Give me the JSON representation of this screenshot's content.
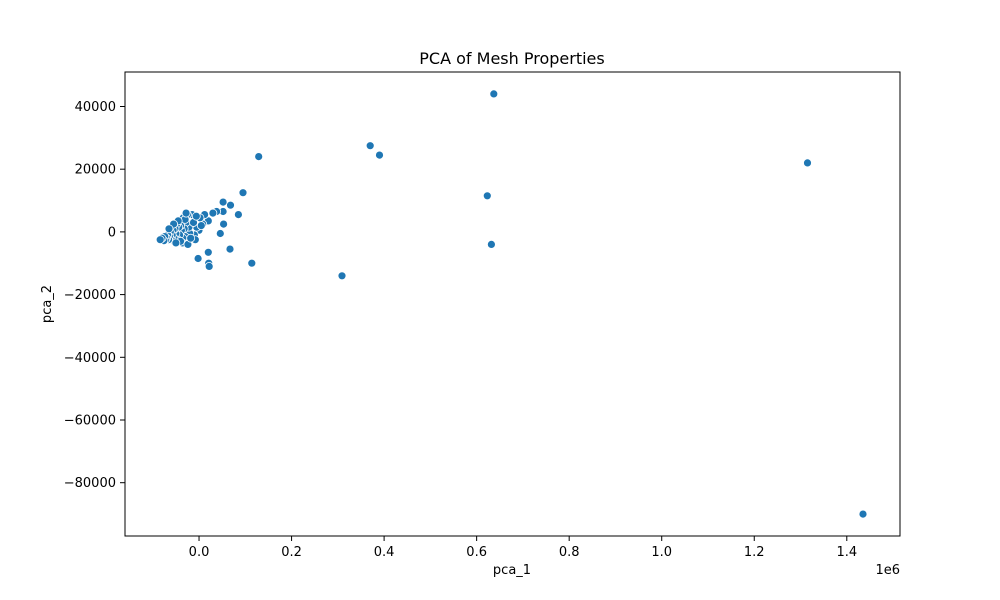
{
  "chart_data": {
    "type": "scatter",
    "title": "PCA of Mesh Properties",
    "xlabel": "pca_1",
    "ylabel": "pca_2",
    "x_offset_text": "1e6",
    "xlim": [
      -160000,
      1515000
    ],
    "ylim": [
      -97000,
      51000
    ],
    "x_ticks": [
      0,
      200000,
      400000,
      600000,
      800000,
      1000000,
      1200000,
      1400000
    ],
    "x_tick_labels": [
      "0.0",
      "0.2",
      "0.4",
      "0.6",
      "0.8",
      "1.0",
      "1.2",
      "1.4"
    ],
    "y_ticks": [
      -80000,
      -60000,
      -40000,
      -20000,
      0,
      20000,
      40000
    ],
    "y_tick_labels": [
      "−80000",
      "−60000",
      "−40000",
      "−20000",
      "0",
      "20000",
      "40000"
    ],
    "grid": false,
    "legend": "none",
    "marker_color": "#1f77b4",
    "marker_edge_color": "#ffffff",
    "points": [
      {
        "x": 1435000,
        "y": -90000
      },
      {
        "x": 1315000,
        "y": 22000
      },
      {
        "x": 637000,
        "y": 44000
      },
      {
        "x": 623000,
        "y": 11500
      },
      {
        "x": 632000,
        "y": -4000
      },
      {
        "x": 370000,
        "y": 27500
      },
      {
        "x": 390000,
        "y": 24500
      },
      {
        "x": 309000,
        "y": -14000
      },
      {
        "x": 129000,
        "y": 24000
      },
      {
        "x": 114000,
        "y": -10000
      },
      {
        "x": 95000,
        "y": 12500
      },
      {
        "x": 68000,
        "y": 8500
      },
      {
        "x": 67000,
        "y": -5500
      },
      {
        "x": 85000,
        "y": 5500
      },
      {
        "x": 52000,
        "y": 9500
      },
      {
        "x": 52000,
        "y": 6500
      },
      {
        "x": 46000,
        "y": -500
      },
      {
        "x": 53000,
        "y": 2500
      },
      {
        "x": 38000,
        "y": 6500
      },
      {
        "x": 30000,
        "y": 6000
      },
      {
        "x": 20000,
        "y": -6500
      },
      {
        "x": 21000,
        "y": -10000
      },
      {
        "x": 22000,
        "y": -11000
      },
      {
        "x": 20000,
        "y": 3500
      },
      {
        "x": 12000,
        "y": 5500
      },
      {
        "x": 8000,
        "y": 2500
      },
      {
        "x": 2000,
        "y": 4500
      },
      {
        "x": 0,
        "y": 500
      },
      {
        "x": -2000,
        "y": -8500
      },
      {
        "x": -5000,
        "y": 1500
      },
      {
        "x": -10000,
        "y": -1000
      },
      {
        "x": -15000,
        "y": 5500
      },
      {
        "x": -18000,
        "y": 2500
      },
      {
        "x": -20000,
        "y": -500
      },
      {
        "x": -22000,
        "y": 1500
      },
      {
        "x": -25000,
        "y": 5500
      },
      {
        "x": -26000,
        "y": -3500
      },
      {
        "x": -28000,
        "y": 3000
      },
      {
        "x": -30000,
        "y": -1500
      },
      {
        "x": -32000,
        "y": 1000
      },
      {
        "x": -34000,
        "y": 4500
      },
      {
        "x": -35000,
        "y": -2000
      },
      {
        "x": -38000,
        "y": 500
      },
      {
        "x": -40000,
        "y": 2000
      },
      {
        "x": -42000,
        "y": -1000
      },
      {
        "x": -44000,
        "y": 1500
      },
      {
        "x": -46000,
        "y": -2500
      },
      {
        "x": -48000,
        "y": 2500
      },
      {
        "x": -50000,
        "y": -500
      },
      {
        "x": -52000,
        "y": 1000
      },
      {
        "x": -54000,
        "y": -2000
      },
      {
        "x": -56000,
        "y": 500
      },
      {
        "x": -58000,
        "y": -1000
      },
      {
        "x": -60000,
        "y": -2500
      },
      {
        "x": -62000,
        "y": 0
      },
      {
        "x": -64000,
        "y": -1500
      },
      {
        "x": -66000,
        "y": -2500
      },
      {
        "x": -68000,
        "y": -1000
      },
      {
        "x": -70000,
        "y": -2000
      },
      {
        "x": -72000,
        "y": -2500
      },
      {
        "x": -74000,
        "y": -1500
      },
      {
        "x": -76000,
        "y": -2800
      },
      {
        "x": -80000,
        "y": -2000
      },
      {
        "x": -84000,
        "y": -2500
      },
      {
        "x": -36000,
        "y": -3500
      },
      {
        "x": -24000,
        "y": -4000
      },
      {
        "x": -30000,
        "y": 4000
      },
      {
        "x": -12000,
        "y": 3000
      },
      {
        "x": -8000,
        "y": -2500
      },
      {
        "x": -45000,
        "y": 3500
      },
      {
        "x": -55000,
        "y": 2500
      },
      {
        "x": -65000,
        "y": 1000
      },
      {
        "x": -40000,
        "y": -3000
      },
      {
        "x": -18000,
        "y": -2000
      },
      {
        "x": -6000,
        "y": 5000
      },
      {
        "x": 5000,
        "y": 2000
      },
      {
        "x": -28000,
        "y": 6000
      },
      {
        "x": -50000,
        "y": -3500
      }
    ]
  }
}
